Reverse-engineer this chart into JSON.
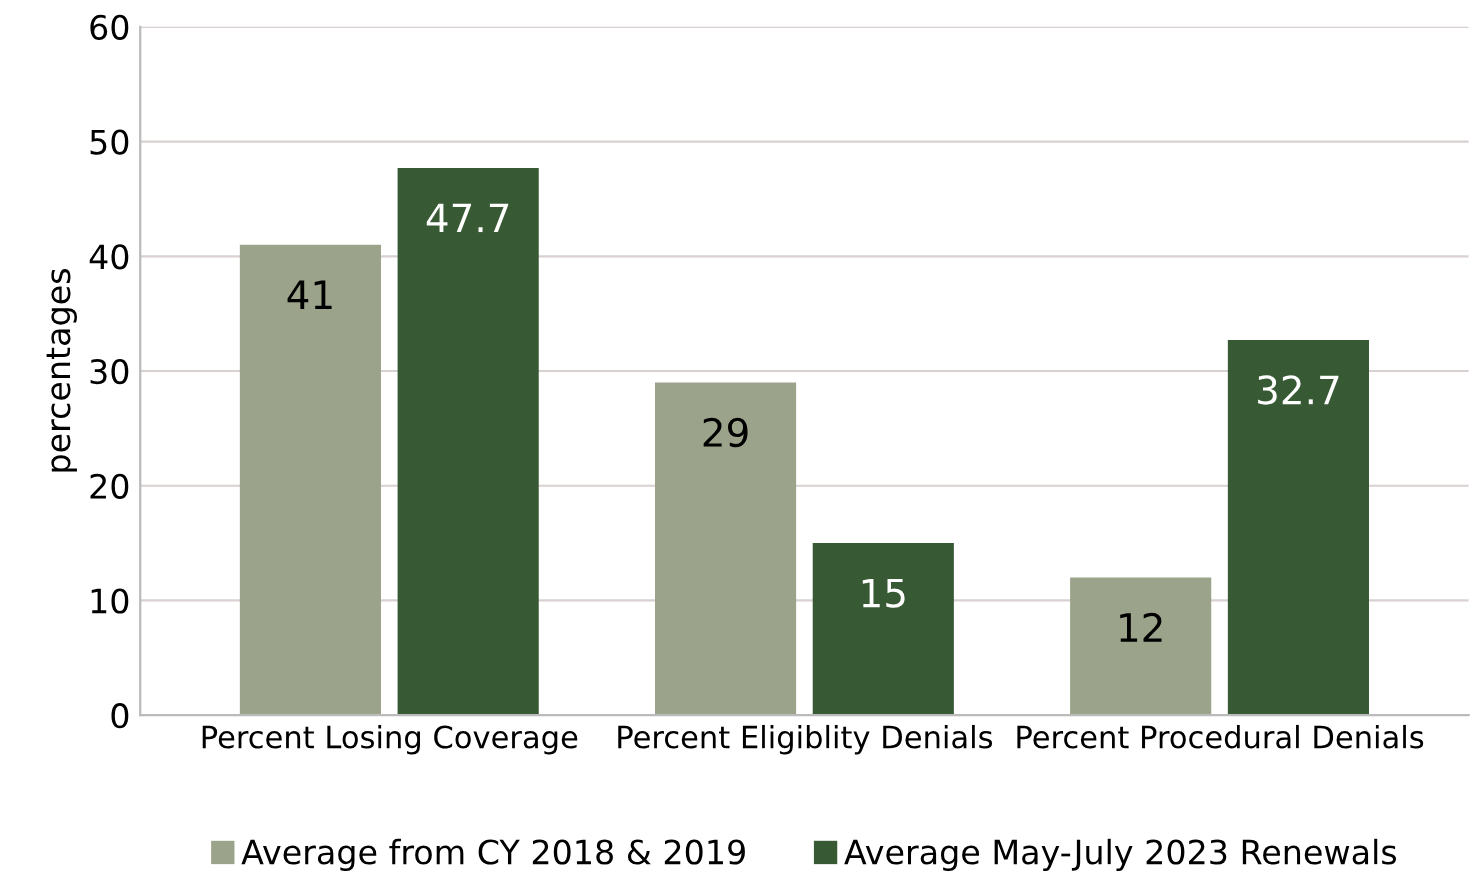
{
  "chart_data": {
    "type": "bar",
    "ylabel": "percentages",
    "categories": [
      "Percent Losing Coverage",
      "Percent Eligiblity Denials",
      "Percent Procedural Denials"
    ],
    "series": [
      {
        "name": "Average from CY 2018 & 2019",
        "color": "#9ba38a",
        "values": [
          41,
          29,
          12
        ]
      },
      {
        "name": "Average May-July 2023 Renewals",
        "color": "#375a34",
        "values": [
          47.7,
          15,
          32.7
        ]
      }
    ],
    "ylim": [
      0,
      60
    ],
    "yticks": [
      0,
      10,
      20,
      30,
      40,
      50,
      60
    ],
    "grid": "y",
    "legend": "bottom",
    "data_labels": true
  }
}
